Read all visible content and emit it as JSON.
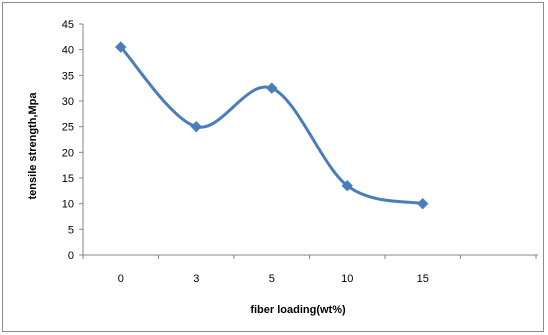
{
  "chart_data": {
    "type": "line",
    "categories": [
      "0",
      "3",
      "5",
      "10",
      "15"
    ],
    "series": [
      {
        "values": [
          40.5,
          25,
          32.5,
          13.5,
          10
        ]
      }
    ],
    "xlabel": "fiber loading(wt%)",
    "ylabel": "tensile strength,Mpa",
    "ylim": [
      0,
      45
    ],
    "yticks": [
      "0",
      "5",
      "10",
      "15",
      "20",
      "25",
      "30",
      "35",
      "40",
      "45"
    ],
    "smooth": true,
    "marker": "diamond",
    "grid": false,
    "legend": "none",
    "line_color": "#4a7ebb"
  }
}
